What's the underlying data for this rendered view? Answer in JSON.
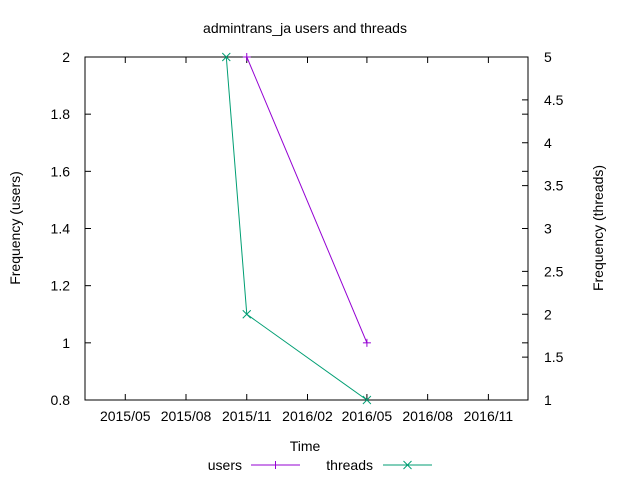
{
  "chart_data": {
    "type": "line",
    "title": "admintrans_ja users and threads",
    "xlabel": "Time",
    "ylabel_left": "Frequency (users)",
    "ylabel_right": "Frequency (threads)",
    "x_ticks": [
      "2015/05",
      "2015/08",
      "2015/11",
      "2016/02",
      "2016/05",
      "2016/08",
      "2016/11"
    ],
    "xlim": [
      "2015-03-01",
      "2016-12-31"
    ],
    "ylim_left": [
      0.8,
      2
    ],
    "y_ticks_left": [
      "0.8",
      "1",
      "1.2",
      "1.4",
      "1.6",
      "1.8",
      "2"
    ],
    "ylim_right": [
      1,
      5
    ],
    "y_ticks_right": [
      "1",
      "1.5",
      "2",
      "2.5",
      "3",
      "3.5",
      "4",
      "4.5",
      "5"
    ],
    "grid": false,
    "legend_position": "bottom",
    "series": [
      {
        "name": "users",
        "axis": "left",
        "color": "#9400d3",
        "marker": "plus",
        "points": [
          {
            "x": "2015-11-01",
            "y": 2
          },
          {
            "x": "2016-05-01",
            "y": 1
          }
        ]
      },
      {
        "name": "threads",
        "axis": "right",
        "color": "#009e73",
        "marker": "cross",
        "points": [
          {
            "x": "2015-10-01",
            "y": 5
          },
          {
            "x": "2015-11-01",
            "y": 2
          },
          {
            "x": "2016-05-01",
            "y": 1
          }
        ]
      }
    ]
  }
}
